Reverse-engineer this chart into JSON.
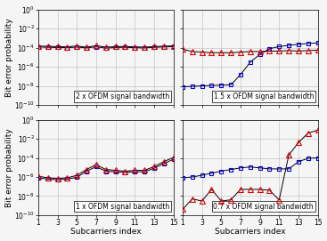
{
  "subcarriers": [
    1,
    2,
    3,
    4,
    5,
    6,
    7,
    8,
    9,
    10,
    11,
    12,
    13,
    14,
    15
  ],
  "titles": [
    "2 x OFDM signal bandwidth",
    "1.5 x OFDM signal bandwidth",
    "1 x OFDM signal bandwidth",
    "0.7 x OFDM signal bandwidth"
  ],
  "xlabel": "Subcarriers index",
  "ylabel": "Bit error probability",
  "ylim_log": [
    -10,
    0
  ],
  "xlim": [
    1,
    15
  ],
  "xticks": [
    1,
    3,
    5,
    7,
    9,
    11,
    13,
    15
  ],
  "yticks_log": [
    0,
    -2,
    -4,
    -6,
    -8,
    -10
  ],
  "blue_data": [
    [
      0.00012,
      0.00011,
      0.000105,
      0.0001,
      0.000115,
      9.5e-05,
      0.000125,
      9e-05,
      0.000105,
      0.00011,
      0.0001,
      9.5e-05,
      0.00011,
      0.00012,
      0.00013
    ],
    [
      8e-09,
      9e-09,
      1e-08,
      1.1e-08,
      1.2e-08,
      1.3e-08,
      1.5e-07,
      3e-06,
      2e-05,
      8e-05,
      0.00013,
      0.00018,
      0.00023,
      0.00028,
      0.00032
    ],
    [
      8e-07,
      6e-07,
      5e-07,
      6e-07,
      9e-07,
      4e-06,
      1.2e-05,
      4e-06,
      3.5e-06,
      3e-06,
      3.5e-06,
      3.5e-06,
      8e-06,
      2.5e-05,
      7e-05
    ],
    [
      8e-07,
      1e-06,
      1.5e-06,
      2.5e-06,
      4e-06,
      6e-06,
      9e-06,
      1.1e-05,
      9e-06,
      7e-06,
      7e-06,
      7e-06,
      4e-05,
      9e-05,
      0.0001
    ]
  ],
  "red_data": [
    [
      0.00015,
      0.00014,
      0.00013,
      0.000125,
      0.000155,
      0.00011,
      0.000165,
      0.000115,
      0.00013,
      0.000135,
      0.000125,
      0.000115,
      0.00013,
      0.000145,
      0.000155
    ],
    [
      7e-05,
      4e-05,
      3.5e-05,
      3e-05,
      3e-05,
      3e-05,
      3.5e-05,
      4e-05,
      4e-05,
      4.5e-05,
      4.5e-05,
      5e-05,
      4.5e-05,
      5e-05,
      5.5e-05
    ],
    [
      1.2e-06,
      8e-07,
      7e-07,
      8e-07,
      1.5e-06,
      6e-06,
      2e-05,
      6e-06,
      5e-06,
      4e-06,
      5e-06,
      5e-06,
      1.2e-05,
      4e-05,
      0.00011
    ],
    [
      4e-10,
      5e-09,
      3e-09,
      5e-08,
      3e-09,
      4e-09,
      5e-08,
      5e-08,
      5e-08,
      4e-08,
      4e-09,
      0.0002,
      0.004,
      0.04,
      0.08
    ]
  ],
  "blue_color": "#0000dd",
  "red_color": "#dd0000",
  "line_color": "#000000",
  "bg_color": "#f5f5f5",
  "grid_color": "#bbbbbb",
  "title_fontsize": 5.5,
  "label_fontsize": 6.5,
  "tick_fontsize": 5.5
}
